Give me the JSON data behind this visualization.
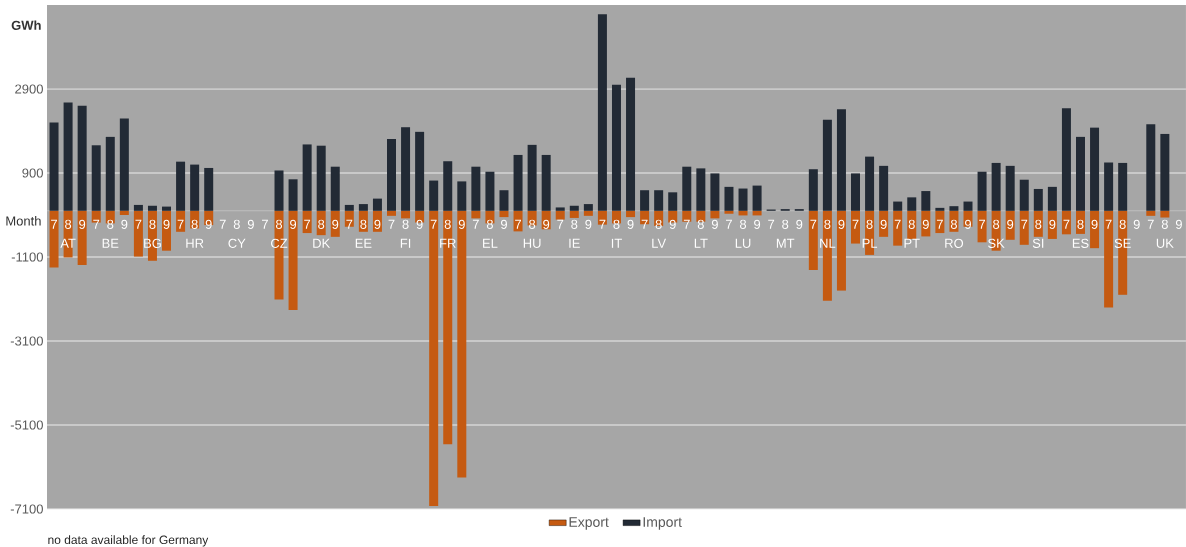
{
  "chart_data": {
    "type": "bar",
    "ylabel": "GWh",
    "xlabel": "Month",
    "categories": [
      "7",
      "8",
      "9",
      "7",
      "8",
      "9",
      "7",
      "8",
      "9",
      "7",
      "8",
      "9",
      "7",
      "8",
      "9",
      "7",
      "8",
      "9",
      "7",
      "8",
      "9",
      "7",
      "8",
      "9",
      "7",
      "8",
      "9",
      "7",
      "8",
      "9",
      "7",
      "8",
      "9",
      "7",
      "8",
      "9",
      "7",
      "8",
      "9",
      "7",
      "8",
      "9",
      "7",
      "8",
      "9",
      "7",
      "8",
      "9",
      "7",
      "8",
      "9",
      "7",
      "8",
      "9",
      "7",
      "8",
      "9",
      "7",
      "8",
      "9",
      "7",
      "8",
      "9",
      "7",
      "8",
      "9",
      "7",
      "8",
      "9",
      "7",
      "8",
      "9",
      "7",
      "8",
      "9",
      "7",
      "8",
      "9",
      "7",
      "8",
      "9"
    ],
    "series": [
      {
        "name": "Export",
        "color": "#c55a11",
        "values": [
          -1350,
          -1110,
          -1290,
          -280,
          -300,
          -100,
          -1090,
          -1190,
          -950,
          -500,
          -420,
          -340,
          null,
          null,
          null,
          null,
          -2110,
          -2360,
          -530,
          -580,
          -620,
          -380,
          -500,
          -500,
          -120,
          -180,
          -280,
          -7030,
          -5560,
          -6350,
          -180,
          -300,
          -150,
          -490,
          -350,
          -440,
          -210,
          -170,
          -120,
          -330,
          -300,
          -150,
          -320,
          -360,
          -280,
          -260,
          -260,
          -180,
          -70,
          -110,
          -110,
          null,
          null,
          null,
          -1410,
          -2140,
          -1900,
          -780,
          -1050,
          -620,
          -830,
          -670,
          -610,
          -530,
          -500,
          -380,
          -750,
          -950,
          -690,
          -810,
          -620,
          -670,
          -560,
          -550,
          -890,
          -2300,
          -2000,
          null,
          -120,
          -160,
          null
        ]
      },
      {
        "name": "Import",
        "color": "#222a35",
        "values": [
          2100,
          2580,
          2500,
          1560,
          1760,
          2200,
          140,
          120,
          100,
          1170,
          1100,
          1020,
          null,
          null,
          null,
          null,
          960,
          750,
          1580,
          1550,
          1050,
          140,
          160,
          290,
          1710,
          1990,
          1880,
          720,
          1180,
          700,
          1050,
          930,
          490,
          1330,
          1570,
          1330,
          80,
          120,
          160,
          4680,
          3000,
          3170,
          490,
          490,
          440,
          1050,
          1010,
          890,
          570,
          530,
          600,
          30,
          40,
          40,
          990,
          2170,
          2420,
          890,
          1290,
          1070,
          220,
          320,
          470,
          70,
          110,
          220,
          930,
          1140,
          1070,
          740,
          520,
          570,
          2440,
          1760,
          1980,
          1150,
          1140,
          null,
          2060,
          1830,
          null
        ]
      }
    ],
    "annotations": [
      "AT",
      "BE",
      "BG",
      "HR",
      "CY",
      "CZ",
      "DK",
      "EE",
      "FI",
      "FR",
      "EL",
      "HU",
      "IE",
      "IT",
      "LV",
      "LT",
      "LU",
      "MT",
      "NL",
      "PL",
      "PT",
      "RO",
      "SK",
      "SI",
      "ES",
      "SE",
      "UK",
      "no data available for Germany"
    ],
    "ylim": [
      -7100,
      4900
    ],
    "yticks": [
      -7100,
      -5100,
      -3100,
      -1100,
      900,
      2900
    ],
    "grid": "y",
    "legend": "bottom",
    "stacked": true
  }
}
